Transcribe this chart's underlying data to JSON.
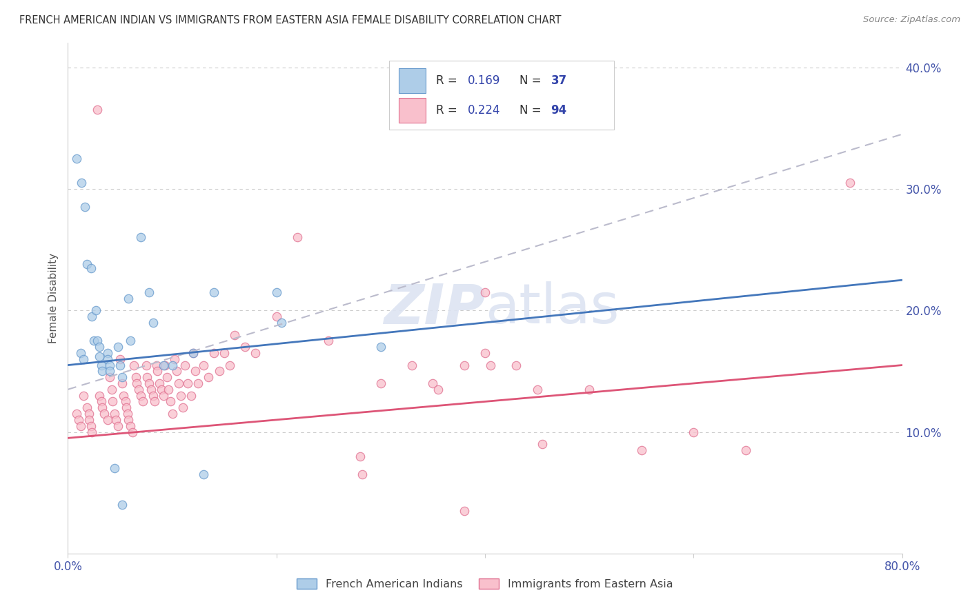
{
  "title": "FRENCH AMERICAN INDIAN VS IMMIGRANTS FROM EASTERN ASIA FEMALE DISABILITY CORRELATION CHART",
  "source": "Source: ZipAtlas.com",
  "ylabel": "Female Disability",
  "ytick_labels": [
    "10.0%",
    "20.0%",
    "30.0%",
    "40.0%"
  ],
  "ytick_values": [
    0.1,
    0.2,
    0.3,
    0.4
  ],
  "xlim": [
    0.0,
    0.8
  ],
  "ylim": [
    0.0,
    0.42
  ],
  "legend_label1": "French American Indians",
  "legend_label2": "Immigrants from Eastern Asia",
  "blue_fill": "#aecde8",
  "blue_edge": "#6699cc",
  "pink_fill": "#f9c0cc",
  "pink_edge": "#e07090",
  "blue_line_color": "#4477bb",
  "pink_line_color": "#dd5577",
  "dashed_line_color": "#bbbbcc",
  "axis_tick_color": "#4455aa",
  "title_color": "#333333",
  "source_color": "#888888",
  "legend_text_color": "#3344aa",
  "legend_border_color": "#cccccc",
  "grid_color": "#cccccc",
  "blue_points": [
    [
      0.008,
      0.325
    ],
    [
      0.013,
      0.305
    ],
    [
      0.016,
      0.285
    ],
    [
      0.018,
      0.238
    ],
    [
      0.022,
      0.235
    ],
    [
      0.023,
      0.195
    ],
    [
      0.025,
      0.175
    ],
    [
      0.027,
      0.2
    ],
    [
      0.028,
      0.175
    ],
    [
      0.03,
      0.17
    ],
    [
      0.03,
      0.162
    ],
    [
      0.032,
      0.155
    ],
    [
      0.033,
      0.15
    ],
    [
      0.038,
      0.165
    ],
    [
      0.038,
      0.16
    ],
    [
      0.04,
      0.155
    ],
    [
      0.04,
      0.15
    ],
    [
      0.048,
      0.17
    ],
    [
      0.05,
      0.155
    ],
    [
      0.052,
      0.145
    ],
    [
      0.058,
      0.21
    ],
    [
      0.06,
      0.175
    ],
    [
      0.07,
      0.26
    ],
    [
      0.078,
      0.215
    ],
    [
      0.082,
      0.19
    ],
    [
      0.092,
      0.155
    ],
    [
      0.1,
      0.155
    ],
    [
      0.12,
      0.165
    ],
    [
      0.14,
      0.215
    ],
    [
      0.2,
      0.215
    ],
    [
      0.205,
      0.19
    ],
    [
      0.045,
      0.07
    ],
    [
      0.052,
      0.04
    ],
    [
      0.13,
      0.065
    ],
    [
      0.3,
      0.17
    ],
    [
      0.012,
      0.165
    ],
    [
      0.015,
      0.16
    ]
  ],
  "pink_points": [
    [
      0.008,
      0.115
    ],
    [
      0.01,
      0.11
    ],
    [
      0.012,
      0.105
    ],
    [
      0.015,
      0.13
    ],
    [
      0.018,
      0.12
    ],
    [
      0.02,
      0.115
    ],
    [
      0.02,
      0.11
    ],
    [
      0.022,
      0.105
    ],
    [
      0.023,
      0.1
    ],
    [
      0.028,
      0.365
    ],
    [
      0.03,
      0.13
    ],
    [
      0.032,
      0.125
    ],
    [
      0.033,
      0.12
    ],
    [
      0.035,
      0.115
    ],
    [
      0.038,
      0.11
    ],
    [
      0.04,
      0.145
    ],
    [
      0.042,
      0.135
    ],
    [
      0.043,
      0.125
    ],
    [
      0.045,
      0.115
    ],
    [
      0.046,
      0.11
    ],
    [
      0.048,
      0.105
    ],
    [
      0.05,
      0.16
    ],
    [
      0.052,
      0.14
    ],
    [
      0.053,
      0.13
    ],
    [
      0.055,
      0.125
    ],
    [
      0.056,
      0.12
    ],
    [
      0.057,
      0.115
    ],
    [
      0.058,
      0.11
    ],
    [
      0.06,
      0.105
    ],
    [
      0.062,
      0.1
    ],
    [
      0.063,
      0.155
    ],
    [
      0.065,
      0.145
    ],
    [
      0.066,
      0.14
    ],
    [
      0.068,
      0.135
    ],
    [
      0.07,
      0.13
    ],
    [
      0.072,
      0.125
    ],
    [
      0.075,
      0.155
    ],
    [
      0.076,
      0.145
    ],
    [
      0.078,
      0.14
    ],
    [
      0.08,
      0.135
    ],
    [
      0.082,
      0.13
    ],
    [
      0.083,
      0.125
    ],
    [
      0.085,
      0.155
    ],
    [
      0.086,
      0.15
    ],
    [
      0.088,
      0.14
    ],
    [
      0.09,
      0.135
    ],
    [
      0.092,
      0.13
    ],
    [
      0.093,
      0.155
    ],
    [
      0.095,
      0.145
    ],
    [
      0.096,
      0.135
    ],
    [
      0.098,
      0.125
    ],
    [
      0.1,
      0.115
    ],
    [
      0.102,
      0.16
    ],
    [
      0.104,
      0.15
    ],
    [
      0.106,
      0.14
    ],
    [
      0.108,
      0.13
    ],
    [
      0.11,
      0.12
    ],
    [
      0.112,
      0.155
    ],
    [
      0.115,
      0.14
    ],
    [
      0.118,
      0.13
    ],
    [
      0.12,
      0.165
    ],
    [
      0.122,
      0.15
    ],
    [
      0.125,
      0.14
    ],
    [
      0.13,
      0.155
    ],
    [
      0.135,
      0.145
    ],
    [
      0.14,
      0.165
    ],
    [
      0.145,
      0.15
    ],
    [
      0.15,
      0.165
    ],
    [
      0.155,
      0.155
    ],
    [
      0.16,
      0.18
    ],
    [
      0.17,
      0.17
    ],
    [
      0.18,
      0.165
    ],
    [
      0.2,
      0.195
    ],
    [
      0.22,
      0.26
    ],
    [
      0.25,
      0.175
    ],
    [
      0.3,
      0.14
    ],
    [
      0.33,
      0.155
    ],
    [
      0.35,
      0.14
    ],
    [
      0.355,
      0.135
    ],
    [
      0.38,
      0.155
    ],
    [
      0.4,
      0.165
    ],
    [
      0.405,
      0.155
    ],
    [
      0.43,
      0.155
    ],
    [
      0.45,
      0.135
    ],
    [
      0.455,
      0.09
    ],
    [
      0.5,
      0.135
    ],
    [
      0.55,
      0.085
    ],
    [
      0.6,
      0.1
    ],
    [
      0.65,
      0.085
    ],
    [
      0.38,
      0.035
    ],
    [
      0.75,
      0.305
    ],
    [
      0.4,
      0.215
    ],
    [
      0.28,
      0.08
    ],
    [
      0.282,
      0.065
    ]
  ],
  "blue_line": [
    [
      0.0,
      0.8
    ],
    [
      0.155,
      0.225
    ]
  ],
  "pink_line": [
    [
      0.0,
      0.8
    ],
    [
      0.095,
      0.155
    ]
  ],
  "dashed_line": [
    [
      0.0,
      0.8
    ],
    [
      0.135,
      0.345
    ]
  ],
  "marker_size": 80,
  "marker_alpha": 0.75
}
